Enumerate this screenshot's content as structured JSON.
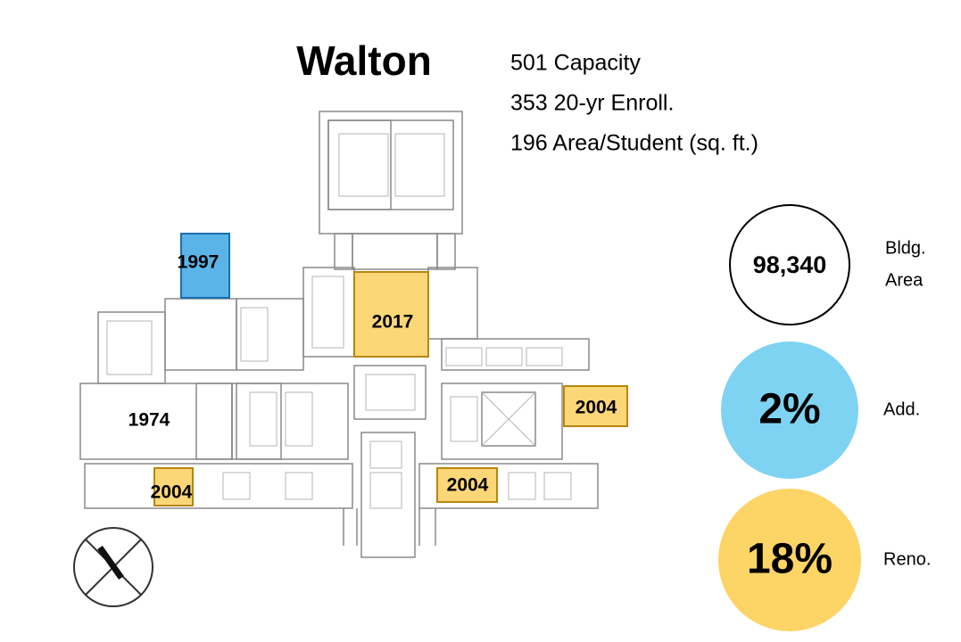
{
  "header": {
    "title": "Walton"
  },
  "stats": [
    "501 Capacity",
    "353 20-yr Enroll.",
    "196 Area/Student  (sq. ft.)"
  ],
  "plan_labels": [
    "1997",
    "2017",
    "1974",
    "2004",
    "2004",
    "2004"
  ],
  "metrics": [
    {
      "value": "98,340",
      "label": [
        "Bldg.",
        "Area"
      ]
    },
    {
      "value": "2%",
      "label": [
        "Add."
      ]
    },
    {
      "value": "18%",
      "label": [
        "Reno."
      ]
    }
  ]
}
